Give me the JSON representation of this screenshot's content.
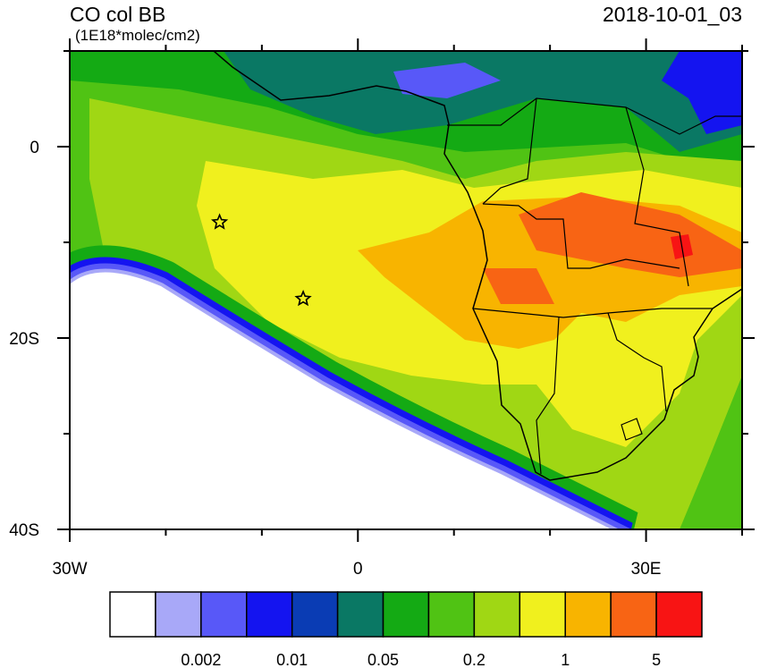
{
  "header": {
    "title": "CO col BB",
    "units": "(1E18*molec/cm2)",
    "time": "2018-10-01_03"
  },
  "map": {
    "xlim": [
      -30,
      40
    ],
    "ylim": [
      -40,
      10
    ],
    "xticks": [
      {
        "value": -30,
        "label": "30W"
      },
      0,
      {
        "value": 30,
        "label": "30E"
      }
    ],
    "yticks": [
      0,
      {
        "value": -20,
        "label": "20S"
      },
      {
        "value": -40,
        "label": "40S"
      }
    ],
    "x_minor_ticks": [
      -20,
      -10,
      10,
      20,
      40
    ],
    "y_minor_ticks": [
      10,
      -10,
      -30
    ],
    "markers": [
      {
        "lon": -14.4,
        "lat": -7.9
      },
      {
        "lon": -5.7,
        "lat": -15.9
      }
    ]
  },
  "colorbar": {
    "colors": [
      "#ffffff",
      "#a8a8f8",
      "#5858f8",
      "#1414f0",
      "#0a3cb4",
      "#0a7864",
      "#14aa14",
      "#50c314",
      "#a0d714",
      "#f0f01e",
      "#f8b400",
      "#f86414",
      "#f81414"
    ],
    "labels": [
      0.002,
      0.01,
      0.05,
      0.2,
      1,
      5
    ]
  }
}
